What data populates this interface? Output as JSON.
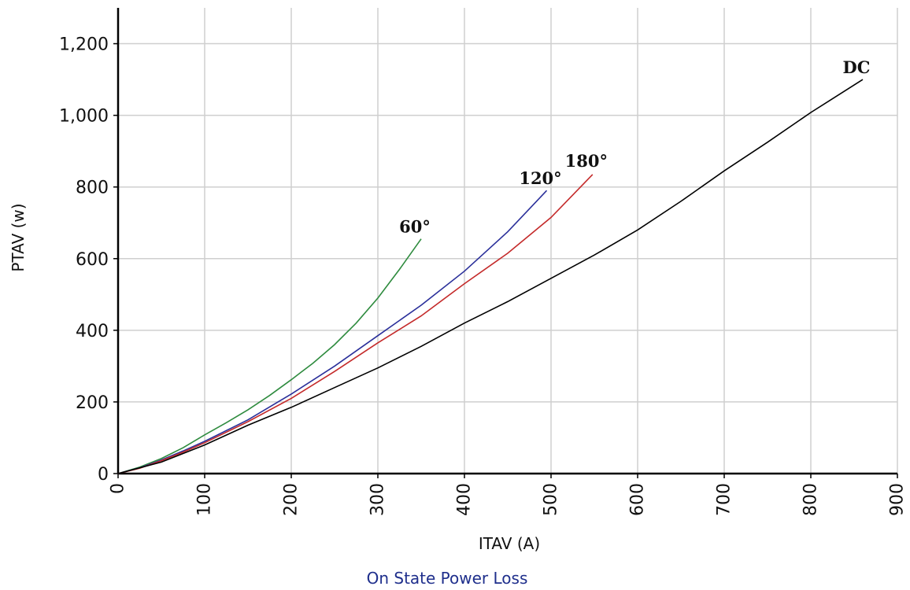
{
  "chart_data": {
    "type": "line",
    "title": "On State Power Loss",
    "xlabel": "ITAV (A)",
    "ylabel": "PTAV (w)",
    "xlim": [
      0,
      900
    ],
    "ylim": [
      0,
      1300
    ],
    "x_ticks": [
      0,
      100,
      200,
      300,
      400,
      500,
      600,
      700,
      800,
      900
    ],
    "x_tick_labels": [
      "0",
      "100",
      "200",
      "300",
      "400",
      "500",
      "600",
      "700",
      "800",
      "900"
    ],
    "y_ticks": [
      0,
      200,
      400,
      600,
      800,
      1000,
      1200
    ],
    "y_tick_labels": [
      "0",
      "200",
      "400",
      "600",
      "800",
      "1,000",
      "1,200"
    ],
    "grid": true,
    "legend": "none",
    "series": [
      {
        "name": "60°",
        "color": "#2e8b3e",
        "points": [
          [
            0,
            0
          ],
          [
            25,
            18
          ],
          [
            50,
            42
          ],
          [
            75,
            72
          ],
          [
            100,
            108
          ],
          [
            125,
            142
          ],
          [
            150,
            178
          ],
          [
            175,
            218
          ],
          [
            200,
            262
          ],
          [
            225,
            308
          ],
          [
            250,
            360
          ],
          [
            275,
            420
          ],
          [
            300,
            490
          ],
          [
            325,
            570
          ],
          [
            350,
            655
          ]
        ]
      },
      {
        "name": "120°",
        "color": "#2a2f9a",
        "points": [
          [
            0,
            0
          ],
          [
            25,
            16
          ],
          [
            50,
            38
          ],
          [
            75,
            63
          ],
          [
            100,
            90
          ],
          [
            150,
            150
          ],
          [
            200,
            222
          ],
          [
            250,
            300
          ],
          [
            300,
            385
          ],
          [
            350,
            470
          ],
          [
            400,
            565
          ],
          [
            450,
            675
          ],
          [
            495,
            790
          ]
        ]
      },
      {
        "name": "180°",
        "color": "#c42a2a",
        "points": [
          [
            0,
            0
          ],
          [
            25,
            15
          ],
          [
            50,
            36
          ],
          [
            75,
            60
          ],
          [
            100,
            86
          ],
          [
            150,
            145
          ],
          [
            200,
            210
          ],
          [
            250,
            285
          ],
          [
            300,
            365
          ],
          [
            350,
            440
          ],
          [
            400,
            530
          ],
          [
            450,
            615
          ],
          [
            500,
            715
          ],
          [
            548,
            835
          ]
        ]
      },
      {
        "name": "DC",
        "color": "#000000",
        "points": [
          [
            0,
            0
          ],
          [
            50,
            32
          ],
          [
            100,
            80
          ],
          [
            150,
            135
          ],
          [
            200,
            185
          ],
          [
            250,
            240
          ],
          [
            300,
            295
          ],
          [
            350,
            355
          ],
          [
            400,
            420
          ],
          [
            450,
            480
          ],
          [
            500,
            545
          ],
          [
            550,
            610
          ],
          [
            600,
            680
          ],
          [
            650,
            760
          ],
          [
            700,
            845
          ],
          [
            750,
            925
          ],
          [
            800,
            1008
          ],
          [
            860,
            1100
          ]
        ]
      }
    ]
  }
}
